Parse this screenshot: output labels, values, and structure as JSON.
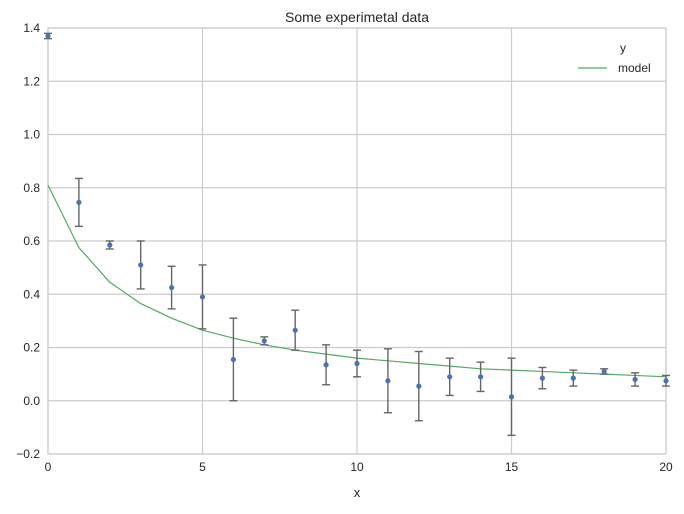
{
  "chart_data": {
    "type": "scatter",
    "title": "Some experimetal data",
    "xlabel": "x",
    "ylabel": "",
    "xlim": [
      0,
      20
    ],
    "ylim": [
      -0.2,
      1.4
    ],
    "xticks": [
      "0",
      "5",
      "10",
      "15",
      "20"
    ],
    "xtick_values": [
      0,
      5,
      10,
      15,
      20
    ],
    "yticks": [
      "−0.2",
      "0.0",
      "0.2",
      "0.4",
      "0.6",
      "0.8",
      "1.0",
      "1.2",
      "1.4"
    ],
    "ytick_values": [
      -0.2,
      0,
      0.2,
      0.4,
      0.6,
      0.8,
      1.0,
      1.2,
      1.4
    ],
    "grid": true,
    "legend_position": "top-right",
    "series": [
      {
        "name": "y",
        "kind": "errorbar",
        "color": "#4c72b0",
        "x": [
          0,
          1,
          2,
          3,
          4,
          5,
          6,
          7,
          8,
          9,
          10,
          11,
          12,
          13,
          14,
          15,
          16,
          17,
          18,
          19,
          20
        ],
        "y": [
          1.37,
          0.745,
          0.585,
          0.51,
          0.425,
          0.39,
          0.155,
          0.225,
          0.265,
          0.135,
          0.14,
          0.075,
          0.055,
          0.09,
          0.09,
          0.015,
          0.085,
          0.085,
          0.11,
          0.08,
          0.075
        ],
        "yerr": [
          0.01,
          0.09,
          0.015,
          0.09,
          0.08,
          0.12,
          0.155,
          0.015,
          0.075,
          0.075,
          0.05,
          0.12,
          0.13,
          0.07,
          0.055,
          0.145,
          0.04,
          0.03,
          0.01,
          0.025,
          0.02
        ]
      },
      {
        "name": "model",
        "kind": "line",
        "color": "#55a868",
        "x": [
          0,
          1,
          2,
          3,
          4,
          5,
          6,
          7,
          8,
          9,
          10,
          11,
          12,
          13,
          14,
          15,
          16,
          17,
          18,
          19,
          20
        ],
        "y": [
          0.81,
          0.575,
          0.445,
          0.365,
          0.31,
          0.265,
          0.235,
          0.21,
          0.19,
          0.175,
          0.16,
          0.15,
          0.14,
          0.13,
          0.12,
          0.115,
          0.11,
          0.105,
          0.1,
          0.095,
          0.09
        ]
      }
    ]
  }
}
